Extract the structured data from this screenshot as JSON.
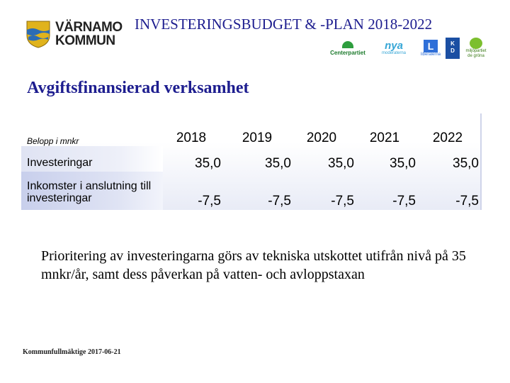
{
  "header": {
    "logo_line1": "VÄRNAMO",
    "logo_line2": "KOMMUN",
    "title": "INVESTERINGSBUDGET & -PLAN 2018-2022"
  },
  "parties": {
    "centerpartiet": "Centerpartiet",
    "moderaterna_word": "nya",
    "moderaterna_sub": "moderaterna",
    "liberalerna_letter": "L",
    "liberalerna_word": "liberalerna",
    "kd_line1": "K",
    "kd_line2": "D",
    "miljopartiet_line1": "miljöpartiet",
    "miljopartiet_line2": "de gröna"
  },
  "subtitle": "Avgiftsfinansierad verksamhet",
  "table": {
    "unit_label": "Belopp i mnkr",
    "years": [
      "2018",
      "2019",
      "2020",
      "2021",
      "2022"
    ],
    "rows": [
      {
        "label": "Investeringar",
        "values": [
          "35,0",
          "35,0",
          "35,0",
          "35,0",
          "35,0"
        ]
      },
      {
        "label": "Inkomster i anslutning till investeringar",
        "values": [
          "-7,5",
          "-7,5",
          "-7,5",
          "-7,5",
          "-7,5"
        ]
      }
    ]
  },
  "paragraph": "Prioritering av investeringarna görs av tekniska utskottet utifrån nivå på 35 mnkr/år, samt dess påverkan på vatten- och avloppstaxan",
  "footer": "Kommunfullmäktige 2017-06-21",
  "colors": {
    "title_blue": "#1d1d8f",
    "crest_blue": "#2b6cb5",
    "crest_gold": "#e0b31c"
  }
}
